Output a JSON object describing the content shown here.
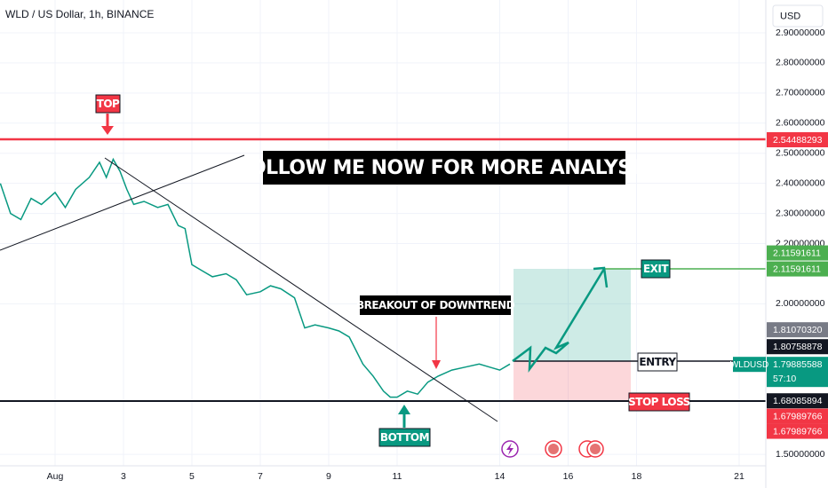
{
  "chart_data": {
    "type": "line",
    "title": "WLD / US Dollar, 1h, BINANCE",
    "currency": "USD",
    "x": [
      -0.6,
      -0.3,
      0,
      0.3,
      0.6,
      1,
      1.3,
      1.6,
      2,
      2.3,
      2.5,
      2.7,
      2.9,
      3.1,
      3.3,
      3.6,
      4,
      4.3,
      4.6,
      4.8,
      5,
      5.3,
      5.6,
      6,
      6.3,
      6.6,
      7,
      7.3,
      7.6,
      8,
      8.3,
      8.6,
      9,
      9.3,
      9.6,
      10,
      10.3,
      10.6,
      10.8,
      11,
      11.3,
      11.6,
      11.9,
      12.2,
      12.6,
      13,
      13.4,
      13.7,
      14,
      14.3
    ],
    "series": [
      {
        "name": "WLDUSD",
        "color": "#089981",
        "values": [
          2.4,
          2.3,
          2.28,
          2.35,
          2.33,
          2.37,
          2.32,
          2.38,
          2.42,
          2.47,
          2.42,
          2.48,
          2.44,
          2.38,
          2.33,
          2.34,
          2.32,
          2.33,
          2.26,
          2.25,
          2.13,
          2.11,
          2.09,
          2.1,
          2.08,
          2.03,
          2.04,
          2.06,
          2.05,
          2.02,
          1.92,
          1.93,
          1.92,
          1.91,
          1.89,
          1.8,
          1.76,
          1.71,
          1.69,
          1.69,
          1.71,
          1.7,
          1.74,
          1.76,
          1.78,
          1.79,
          1.8,
          1.79,
          1.78,
          1.8
        ]
      }
    ],
    "xlim": [
      -0.61,
      21.78
    ],
    "xticks": [
      {
        "value": 1,
        "label": "Aug"
      },
      3,
      5,
      7,
      9,
      11,
      14,
      16,
      18,
      21
    ],
    "ylim": [
      1.462,
      3.009
    ],
    "yticks": [
      {
        "value": 2.9,
        "label": "2.90000000"
      },
      {
        "value": 2.8,
        "label": "2.80000000"
      },
      {
        "value": 2.7,
        "label": "2.70000000"
      },
      {
        "value": 2.6,
        "label": "2.60000000"
      },
      {
        "value": 2.5,
        "label": "2.50000000"
      },
      {
        "value": 2.4,
        "label": "2.40000000"
      },
      {
        "value": 2.3,
        "label": "2.30000000"
      },
      {
        "value": 2.2,
        "label": "2.20000000"
      },
      {
        "value": 2.0,
        "label": "2.00000000"
      },
      {
        "value": 1.5,
        "label": "1.50000000"
      }
    ],
    "price_tags": [
      {
        "value": 2.54488293,
        "color": "#f23645"
      },
      {
        "value": 2.11591611,
        "color": "#4caf50"
      },
      {
        "value": 2.11591611,
        "color": "#4caf50"
      },
      {
        "value": 1.8107032,
        "label": "1.81070320",
        "color": "#787b86"
      },
      {
        "value": 1.80758878,
        "color": "#131722"
      },
      {
        "value": 1.79885588,
        "color": "#089981"
      },
      {
        "value": 1.68085894,
        "color": "#131722"
      },
      {
        "value": 1.67989766,
        "color": "#f23645"
      },
      {
        "value": 1.67989766,
        "color": "#f23645"
      }
    ],
    "countdown": "57:10",
    "annotations": {
      "headline": "FOLLOW ME NOW FOR MORE ANALYSIS",
      "top": "TOP",
      "bottom": "BOTTOM",
      "breakout": "BREAKOUT OF DOWNTREND",
      "exit": "EXIT",
      "entry": "ENTRY",
      "stop_loss": "STOP LOSS"
    }
  }
}
